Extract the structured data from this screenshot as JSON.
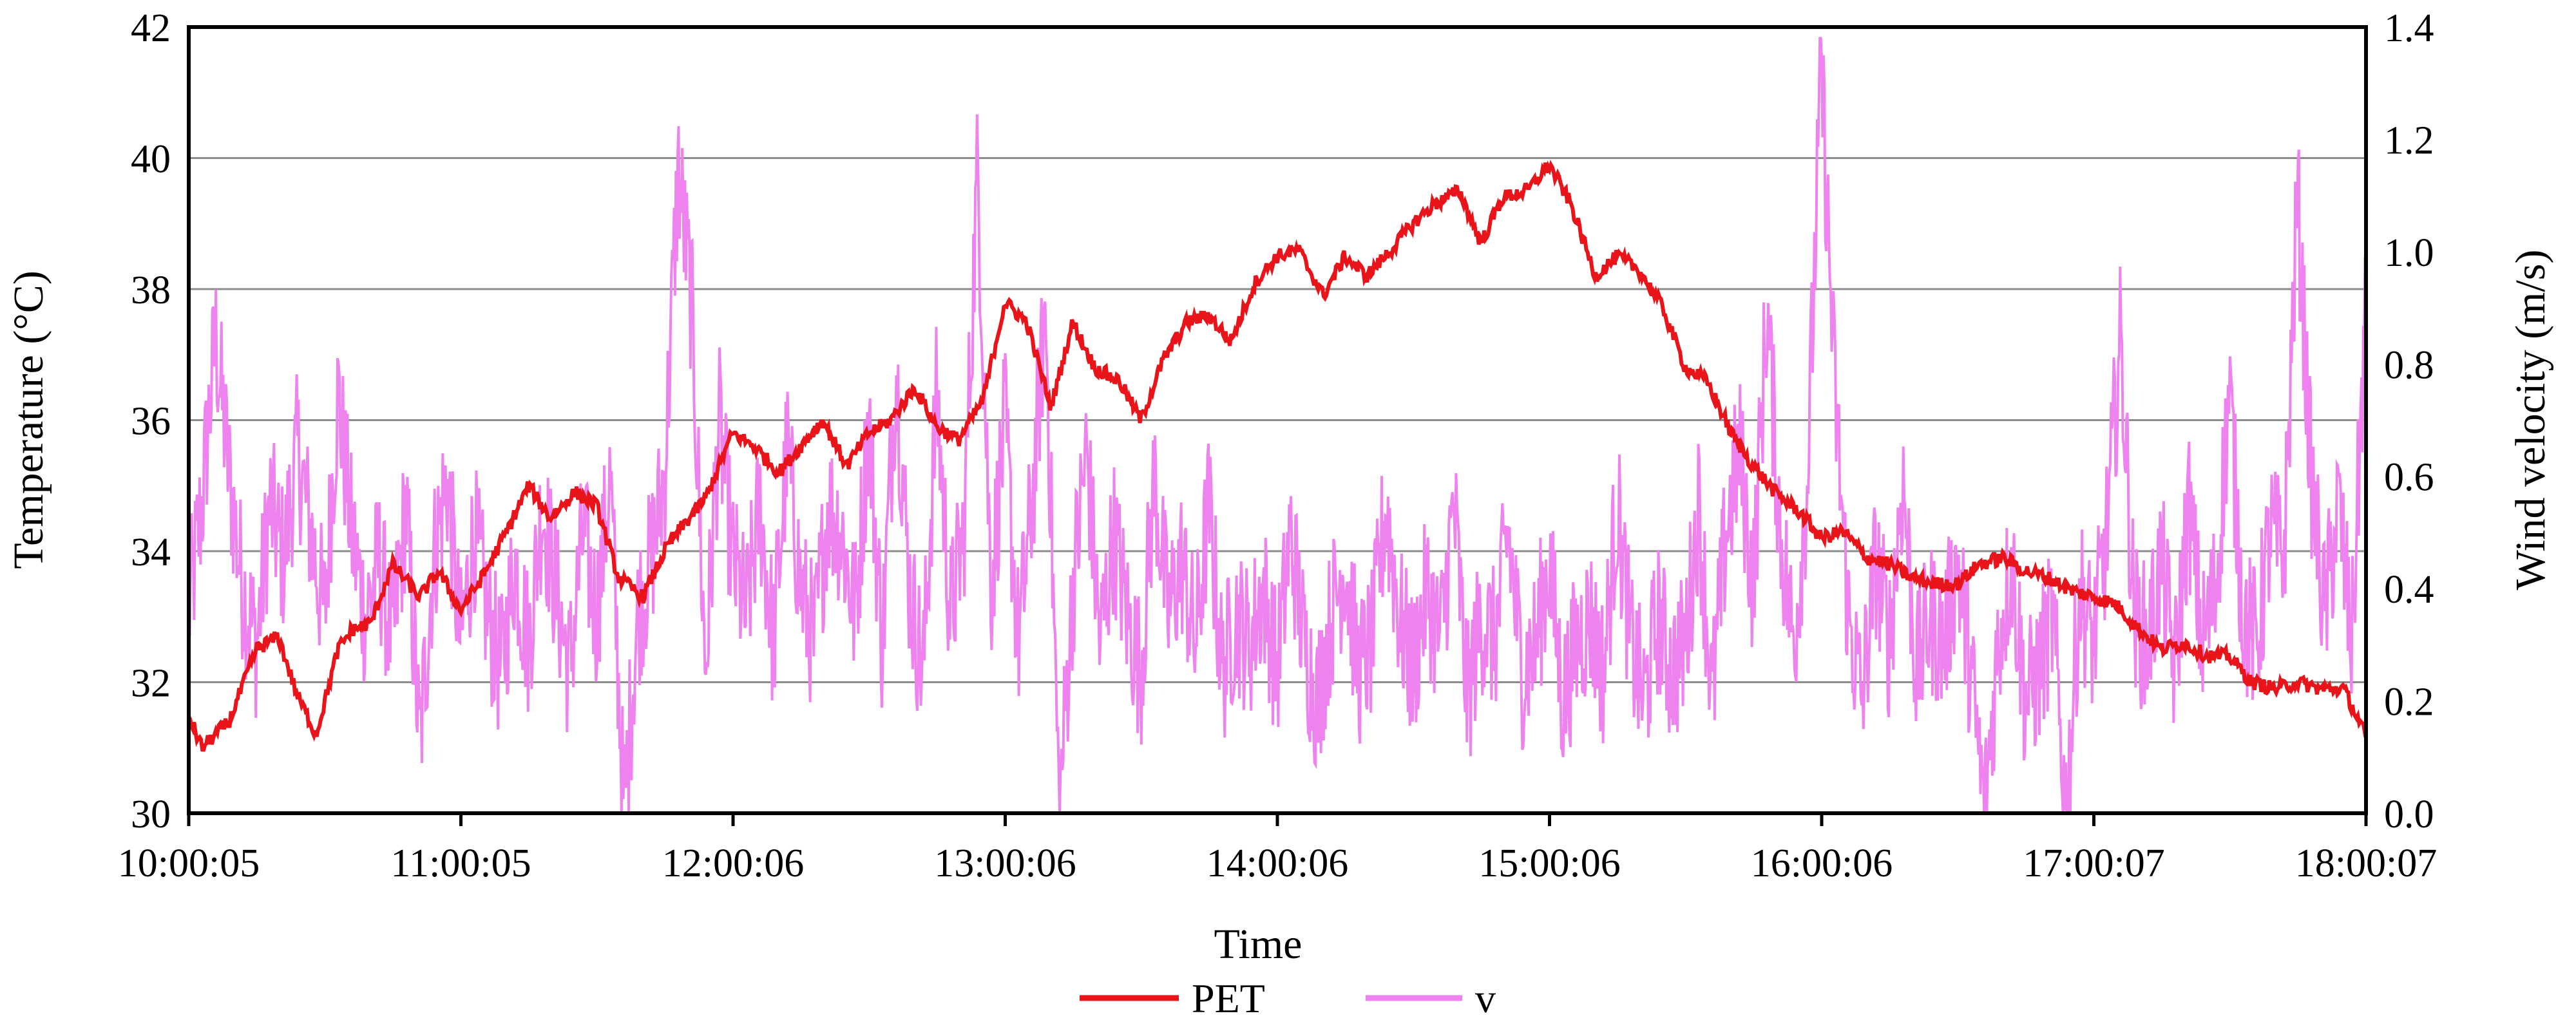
{
  "chart_data": {
    "type": "line",
    "title": "",
    "xlabel": "Time",
    "ylabel_left": "Temperature (°C)",
    "ylabel_right": "Wind velocity (m/s)",
    "x_tick_labels": [
      "10:00:05",
      "11:00:05",
      "12:00:06",
      "13:00:06",
      "14:00:06",
      "15:00:06",
      "16:00:06",
      "17:00:07",
      "18:00:07"
    ],
    "x_range_hours": [
      10.0014,
      18.0019
    ],
    "ylim_left": [
      30,
      42
    ],
    "yticks_left": [
      "30",
      "32",
      "34",
      "36",
      "38",
      "40",
      "42"
    ],
    "ylim_right": [
      0,
      1.4
    ],
    "yticks_right": [
      "0.0",
      "0.2",
      "0.4",
      "0.6",
      "0.8",
      "1.0",
      "1.2",
      "1.4"
    ],
    "grid": "horizontal major gridlines",
    "legend_position": "bottom-center",
    "colors": {
      "PET": "#e8141a",
      "v": "#ee82ee",
      "grid": "#8c8c8c",
      "axis": "#000000"
    },
    "series": [
      {
        "name": "PET",
        "axis": "left",
        "time_hours": [
          10.0,
          10.05,
          10.15,
          10.25,
          10.33,
          10.4,
          10.47,
          10.55,
          10.6,
          10.67,
          10.75,
          10.85,
          10.92,
          11.0,
          11.08,
          11.17,
          11.25,
          11.33,
          11.42,
          11.5,
          11.58,
          11.67,
          11.75,
          11.8,
          11.9,
          12.0,
          12.08,
          12.17,
          12.25,
          12.33,
          12.42,
          12.5,
          12.58,
          12.67,
          12.75,
          12.83,
          12.92,
          13.0,
          13.08,
          13.17,
          13.25,
          13.33,
          13.42,
          13.5,
          13.58,
          13.67,
          13.75,
          13.83,
          13.92,
          14.0,
          14.08,
          14.17,
          14.25,
          14.33,
          14.42,
          14.5,
          14.58,
          14.67,
          14.75,
          14.83,
          14.92,
          15.0,
          15.08,
          15.17,
          15.25,
          15.33,
          15.42,
          15.5,
          15.58,
          15.67,
          15.75,
          15.83,
          15.92,
          16.0,
          16.08,
          16.17,
          16.25,
          16.33,
          16.42,
          16.5,
          16.58,
          16.67,
          16.75,
          16.83,
          16.92,
          17.0,
          17.08,
          17.17,
          17.25,
          17.33,
          17.42,
          17.5,
          17.58,
          17.67,
          17.75,
          17.83,
          17.92,
          18.0
        ],
        "values": [
          31.5,
          31.0,
          31.4,
          32.5,
          32.7,
          31.8,
          31.2,
          32.5,
          32.8,
          32.9,
          33.8,
          33.3,
          33.7,
          33.1,
          33.6,
          34.3,
          35.0,
          34.5,
          34.9,
          34.7,
          33.6,
          33.3,
          34.0,
          34.3,
          34.8,
          35.8,
          35.6,
          35.2,
          35.6,
          36.0,
          35.3,
          35.8,
          36.0,
          36.5,
          35.9,
          35.7,
          36.3,
          37.8,
          37.5,
          36.2,
          37.5,
          36.8,
          36.6,
          36.0,
          36.9,
          37.5,
          37.6,
          37.2,
          38.1,
          38.5,
          38.6,
          37.9,
          38.5,
          38.2,
          38.6,
          39.0,
          39.3,
          39.5,
          38.7,
          39.4,
          39.5,
          39.9,
          39.3,
          38.2,
          38.5,
          38.3,
          37.7,
          36.8,
          36.6,
          35.8,
          35.3,
          34.9,
          34.6,
          34.2,
          34.3,
          33.9,
          33.8,
          33.6,
          33.5,
          33.5,
          33.8,
          33.9,
          33.7,
          33.6,
          33.4,
          33.3,
          33.2,
          32.8,
          32.5,
          32.6,
          32.4,
          32.4,
          32.0,
          31.9,
          32.0,
          31.9,
          31.9,
          31.2
        ],
        "note_resolution": "sampled every ~5 min from a high-frequency trace"
      },
      {
        "name": "v",
        "axis": "right",
        "time_hours": [
          10.0,
          10.05,
          10.1,
          10.15,
          10.2,
          10.25,
          10.3,
          10.35,
          10.4,
          10.45,
          10.5,
          10.55,
          10.6,
          10.65,
          10.7,
          10.75,
          10.8,
          10.85,
          10.9,
          10.95,
          11.0,
          11.05,
          11.1,
          11.15,
          11.2,
          11.25,
          11.3,
          11.35,
          11.4,
          11.45,
          11.5,
          11.55,
          11.6,
          11.65,
          11.7,
          11.75,
          11.8,
          11.85,
          11.9,
          11.95,
          12.0,
          12.05,
          12.1,
          12.15,
          12.2,
          12.25,
          12.3,
          12.35,
          12.4,
          12.45,
          12.5,
          12.55,
          12.6,
          12.65,
          12.7,
          12.75,
          12.8,
          12.85,
          12.9,
          12.95,
          13.0,
          13.05,
          13.1,
          13.15,
          13.2,
          13.25,
          13.3,
          13.35,
          13.4,
          13.45,
          13.5,
          13.55,
          13.6,
          13.65,
          13.7,
          13.75,
          13.8,
          13.85,
          13.9,
          13.95,
          14.0,
          14.05,
          14.1,
          14.15,
          14.2,
          14.25,
          14.3,
          14.35,
          14.4,
          14.45,
          14.5,
          14.55,
          14.6,
          14.65,
          14.7,
          14.75,
          14.8,
          14.85,
          14.9,
          14.95,
          15.0,
          15.05,
          15.1,
          15.15,
          15.2,
          15.25,
          15.3,
          15.35,
          15.4,
          15.45,
          15.5,
          15.55,
          15.6,
          15.65,
          15.7,
          15.75,
          15.8,
          15.85,
          15.9,
          15.95,
          16.0,
          16.05,
          16.1,
          16.15,
          16.2,
          16.25,
          16.3,
          16.35,
          16.4,
          16.45,
          16.5,
          16.55,
          16.6,
          16.65,
          16.7,
          16.75,
          16.8,
          16.85,
          16.9,
          16.95,
          17.0,
          17.05,
          17.1,
          17.15,
          17.2,
          17.25,
          17.3,
          17.35,
          17.4,
          17.45,
          17.5,
          17.55,
          17.6,
          17.65,
          17.7,
          17.75,
          17.8,
          17.85,
          17.9,
          17.95,
          18.0
        ],
        "values": [
          0.35,
          0.55,
          0.85,
          0.6,
          0.4,
          0.3,
          0.55,
          0.45,
          0.65,
          0.5,
          0.35,
          0.75,
          0.5,
          0.35,
          0.45,
          0.3,
          0.55,
          0.12,
          0.45,
          0.6,
          0.3,
          0.5,
          0.35,
          0.25,
          0.45,
          0.3,
          0.55,
          0.4,
          0.25,
          0.5,
          0.35,
          0.6,
          0.0,
          0.35,
          0.45,
          0.6,
          1.15,
          0.9,
          0.25,
          0.7,
          0.45,
          0.35,
          0.55,
          0.3,
          0.65,
          0.4,
          0.3,
          0.55,
          0.5,
          0.35,
          0.7,
          0.3,
          0.8,
          0.4,
          0.25,
          0.75,
          0.35,
          0.5,
          1.15,
          0.4,
          0.7,
          0.3,
          0.55,
          0.9,
          0.0,
          0.4,
          0.65,
          0.3,
          0.5,
          0.35,
          0.25,
          0.6,
          0.35,
          0.45,
          0.3,
          0.55,
          0.25,
          0.35,
          0.3,
          0.4,
          0.25,
          0.5,
          0.3,
          0.2,
          0.35,
          0.45,
          0.25,
          0.3,
          0.55,
          0.35,
          0.25,
          0.4,
          0.3,
          0.55,
          0.2,
          0.35,
          0.3,
          0.5,
          0.25,
          0.3,
          0.45,
          0.2,
          0.3,
          0.35,
          0.25,
          0.55,
          0.3,
          0.2,
          0.35,
          0.25,
          0.3,
          0.55,
          0.2,
          0.5,
          0.65,
          0.4,
          0.9,
          0.5,
          0.3,
          0.6,
          1.33,
          0.75,
          0.35,
          0.2,
          0.45,
          0.3,
          0.6,
          0.25,
          0.35,
          0.3,
          0.45,
          0.25,
          0.0,
          0.3,
          0.45,
          0.2,
          0.25,
          0.35,
          0.0,
          0.4,
          0.3,
          0.5,
          0.85,
          0.35,
          0.3,
          0.45,
          0.25,
          0.55,
          0.3,
          0.4,
          0.75,
          0.35,
          0.3,
          0.5,
          0.45,
          1.1,
          0.6,
          0.35,
          0.55,
          0.3,
          0.9
        ],
        "note_resolution": "sampled every ~3 min from a high-frequency trace"
      }
    ]
  }
}
